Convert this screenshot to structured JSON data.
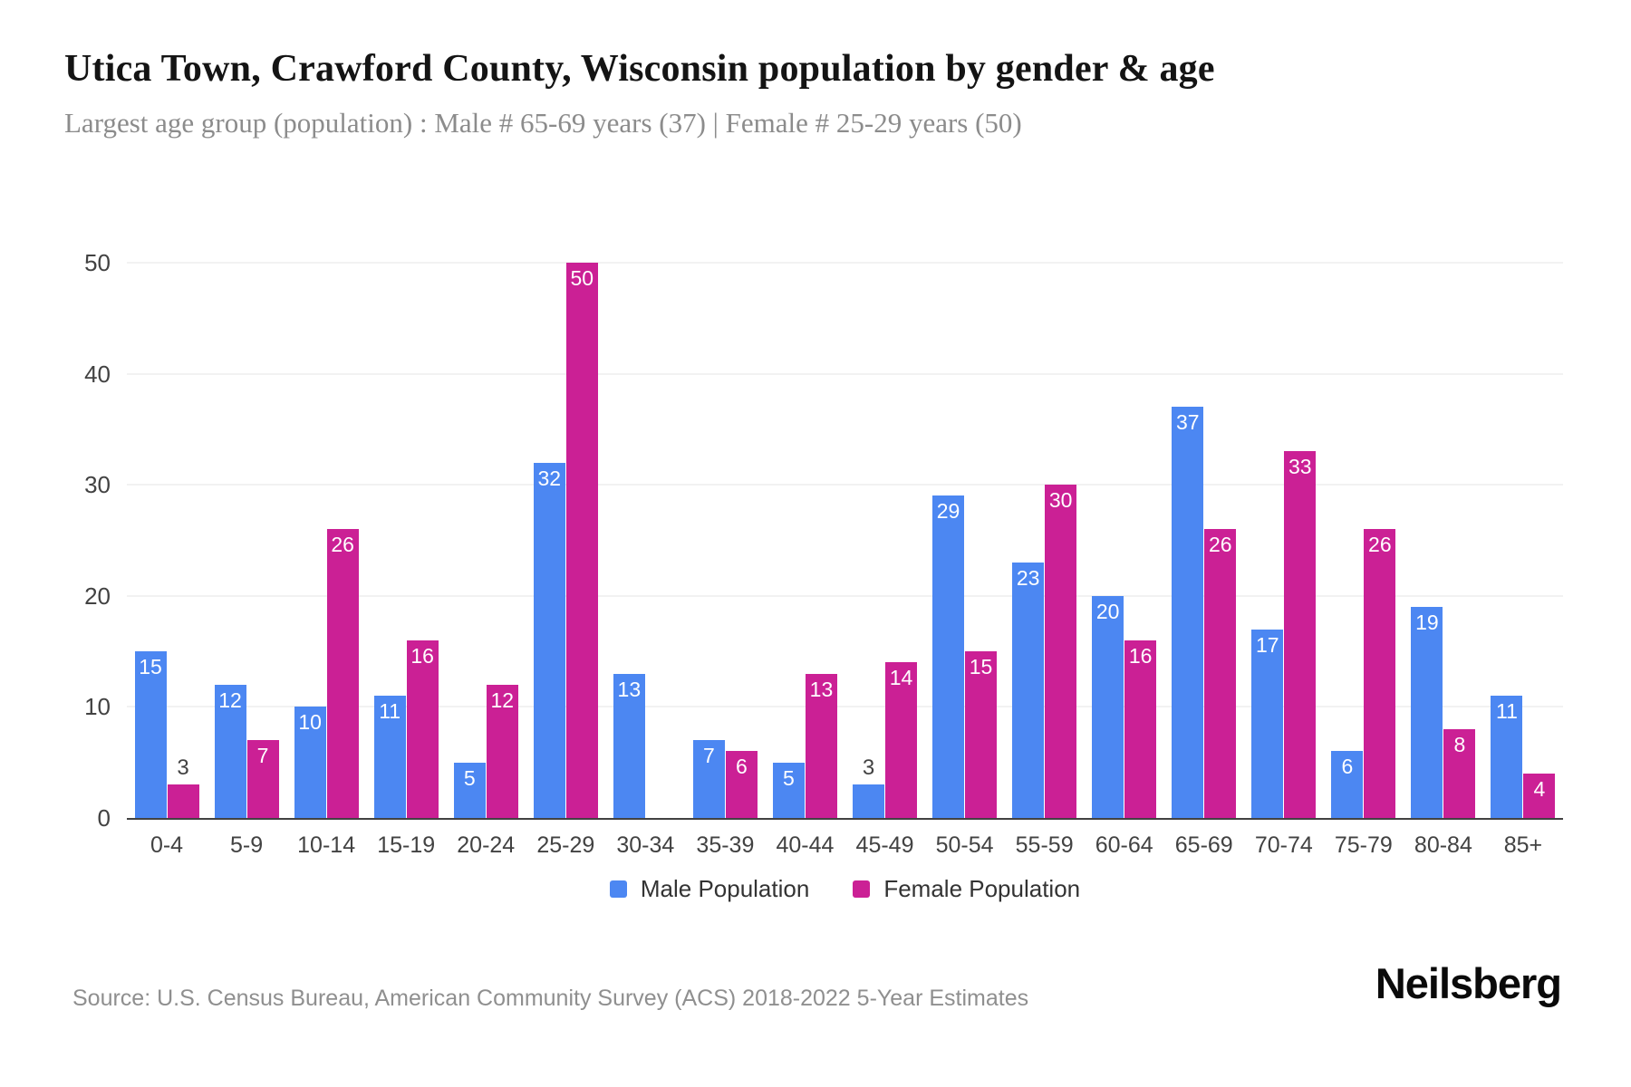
{
  "header": {
    "title": "Utica Town, Crawford County, Wisconsin population by gender & age",
    "subtitle": "Largest age group (population) : Male # 65-69 years (37) | Female # 25-29 years (50)"
  },
  "chart_data": {
    "type": "bar",
    "title": "Utica Town, Crawford County, Wisconsin population by gender & age",
    "xlabel": "",
    "ylabel": "",
    "categories": [
      "0-4",
      "5-9",
      "10-14",
      "15-19",
      "20-24",
      "25-29",
      "30-34",
      "35-39",
      "40-44",
      "45-49",
      "50-54",
      "55-59",
      "60-64",
      "65-69",
      "70-74",
      "75-79",
      "80-84",
      "85+"
    ],
    "series": [
      {
        "name": "Male Population",
        "color": "#4C87F2",
        "values": [
          15,
          12,
          10,
          11,
          5,
          32,
          13,
          7,
          5,
          3,
          29,
          23,
          20,
          37,
          17,
          6,
          19,
          11
        ]
      },
      {
        "name": "Female Population",
        "color": "#CB2095",
        "values": [
          3,
          7,
          26,
          16,
          12,
          50,
          0,
          6,
          13,
          14,
          15,
          30,
          16,
          26,
          33,
          26,
          8,
          4
        ]
      }
    ],
    "ylim": [
      0,
      50
    ],
    "yticks": [
      0,
      10,
      20,
      30,
      40,
      50
    ],
    "grid": true,
    "legend_position": "bottom",
    "value_labels": true
  },
  "colors": {
    "male": "#4C87F2",
    "female": "#CB2095",
    "grid": "#F2F2F2",
    "axis": "#424242",
    "label_inside": "#FFFFFF",
    "label_outside": "#424242",
    "title_text": "#141414",
    "subtitle_text": "#8C8C8C"
  },
  "footer": {
    "source": "Source: U.S. Census Bureau, American Community Survey (ACS) 2018-2022 5-Year Estimates",
    "brand": "Neilsberg"
  }
}
